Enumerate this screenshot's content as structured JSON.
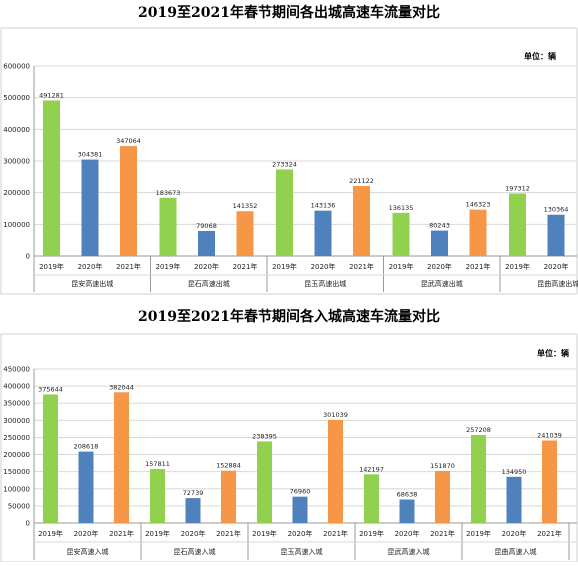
{
  "chart_data": [
    {
      "type": "bar",
      "title": "2019至2021年春节期间各出城高速车流量对比",
      "unit_label": "单位：辆",
      "ylim": [
        0,
        600000
      ],
      "yticks": [
        "0",
        "100000",
        "200000",
        "300000",
        "400000",
        "500000",
        "600000"
      ],
      "grid": true,
      "groups": [
        {
          "name": "昆安高速出城",
          "bars": [
            {
              "year": "2019年",
              "value": 491281
            },
            {
              "year": "2020年",
              "value": 304381
            },
            {
              "year": "2021年",
              "value": 347064
            }
          ]
        },
        {
          "name": "昆石高速出城",
          "bars": [
            {
              "year": "2019年",
              "value": 183673
            },
            {
              "year": "2020年",
              "value": 79068
            },
            {
              "year": "2021年",
              "value": 141352
            }
          ]
        },
        {
          "name": "昆玉高速出城",
          "bars": [
            {
              "year": "2019年",
              "value": 273324
            },
            {
              "year": "2020年",
              "value": 143136
            },
            {
              "year": "2021年",
              "value": 221122
            }
          ]
        },
        {
          "name": "昆武高速出城",
          "bars": [
            {
              "year": "2019年",
              "value": 136135
            },
            {
              "year": "2020年",
              "value": 80243
            },
            {
              "year": "2021年",
              "value": 146323
            }
          ]
        },
        {
          "name": "昆曲高速出城",
          "bars": [
            {
              "year": "2019年",
              "value": 197312
            },
            {
              "year": "2020年",
              "value": 130364
            }
          ]
        }
      ],
      "colors": {
        "2019年": "#92d050",
        "2020年": "#4f81bd",
        "2021年": "#f79646"
      }
    },
    {
      "type": "bar",
      "title": "2019至2021年春节期间各入城高速车流量对比",
      "unit_label": "单位：辆",
      "ylim": [
        0,
        450000
      ],
      "yticks": [
        "0",
        "50000",
        "100000",
        "150000",
        "200000",
        "250000",
        "300000",
        "350000",
        "400000",
        "450000"
      ],
      "grid": true,
      "groups": [
        {
          "name": "昆安高速入城",
          "bars": [
            {
              "year": "2019年",
              "value": 375644
            },
            {
              "year": "2020年",
              "value": 208618
            },
            {
              "year": "2021年",
              "value": 382044
            }
          ]
        },
        {
          "name": "昆石高速入城",
          "bars": [
            {
              "year": "2019年",
              "value": 157811
            },
            {
              "year": "2020年",
              "value": 72739
            },
            {
              "year": "2021年",
              "value": 152884
            }
          ]
        },
        {
          "name": "昆玉高速入城",
          "bars": [
            {
              "year": "2019年",
              "value": 238395
            },
            {
              "year": "2020年",
              "value": 76960
            },
            {
              "year": "2021年",
              "value": 301039
            }
          ]
        },
        {
          "name": "昆武高速入城",
          "bars": [
            {
              "year": "2019年",
              "value": 142197
            },
            {
              "year": "2020年",
              "value": 68638
            },
            {
              "year": "2021年",
              "value": 151870
            }
          ]
        },
        {
          "name": "昆曲高速入城",
          "bars": [
            {
              "year": "2019年",
              "value": 257208
            },
            {
              "year": "2020年",
              "value": 134950
            },
            {
              "year": "2021年",
              "value": 241039
            }
          ]
        }
      ],
      "colors": {
        "2019年": "#92d050",
        "2020年": "#4f81bd",
        "2021年": "#f79646"
      }
    }
  ]
}
